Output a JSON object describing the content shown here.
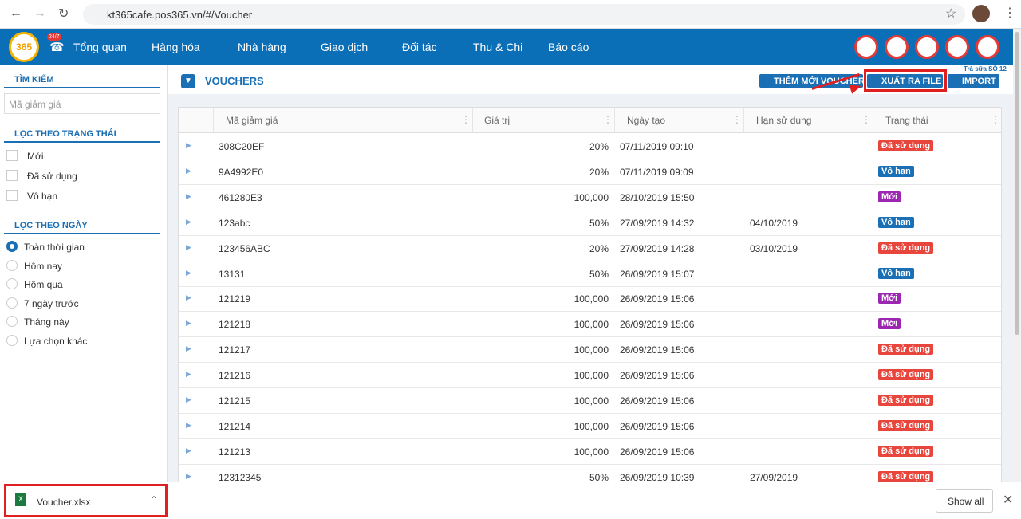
{
  "browser": {
    "url": "kt365cafe.pos365.vn/#/Voucher"
  },
  "nav": {
    "logo": "365",
    "badge": "24/7",
    "items": [
      "Tổng quan",
      "Hàng hóa",
      "Nhà hàng",
      "Giao dịch",
      "Đối tác",
      "Thu & Chi",
      "Báo cáo"
    ],
    "store": "Trà sữa SỐ 12"
  },
  "sidebar": {
    "search_title": "TÌM KIẾM",
    "search_placeholder": "Mã giảm giá",
    "status_title": "LỌC THEO TRẠNG THÁI",
    "status_options": [
      "Mới",
      "Đã sử dụng",
      "Vô hạn"
    ],
    "date_title": "LỌC THEO NGÀY",
    "date_options": [
      "Toàn thời gian",
      "Hôm nay",
      "Hôm qua",
      "7 ngày trước",
      "Tháng này",
      "Lựa chọn khác"
    ]
  },
  "page": {
    "title": "VOUCHERS",
    "buttons": [
      "THÊM MỚI VOUCHER",
      "XUẤT RA FILE",
      "IMPORT"
    ]
  },
  "table": {
    "columns": [
      "Mã giảm giá",
      "Giá trị",
      "Ngày tạo",
      "Hạn sử dụng",
      "Trạng thái"
    ],
    "rows": [
      {
        "code": "308C20EF",
        "value": "20%",
        "created": "07/11/2019 09:10",
        "expires": null,
        "status": "Đã sử dụng",
        "status_color": "#e8453c"
      },
      {
        "code": "9A4992E0",
        "value": "20%",
        "created": "07/11/2019 09:09",
        "expires": null,
        "status": "Vô hạn",
        "status_color": "#1a6fb5"
      },
      {
        "code": "461280E3",
        "value": "100,000",
        "created": "28/10/2019 15:50",
        "expires": null,
        "status": "Mới",
        "status_color": "#9c27b0"
      },
      {
        "code": "123abc",
        "value": "50%",
        "created": "27/09/2019 14:32",
        "expires": "04/10/2019",
        "status": "Vô hạn",
        "status_color": "#1a6fb5"
      },
      {
        "code": "123456ABC",
        "value": "20%",
        "created": "27/09/2019 14:28",
        "expires": "03/10/2019",
        "status": "Đã sử dụng",
        "status_color": "#e8453c"
      },
      {
        "code": "13131",
        "value": "50%",
        "created": "26/09/2019 15:07",
        "expires": null,
        "status": "Vô hạn",
        "status_color": "#1a6fb5"
      },
      {
        "code": "121219",
        "value": "100,000",
        "created": "26/09/2019 15:06",
        "expires": null,
        "status": "Mới",
        "status_color": "#9c27b0"
      },
      {
        "code": "121218",
        "value": "100,000",
        "created": "26/09/2019 15:06",
        "expires": null,
        "status": "Mới",
        "status_color": "#9c27b0"
      },
      {
        "code": "121217",
        "value": "100,000",
        "created": "26/09/2019 15:06",
        "expires": null,
        "status": "Đã sử dụng",
        "status_color": "#e8453c"
      },
      {
        "code": "121216",
        "value": "100,000",
        "created": "26/09/2019 15:06",
        "expires": null,
        "status": "Đã sử dụng",
        "status_color": "#e8453c"
      },
      {
        "code": "121215",
        "value": "100,000",
        "created": "26/09/2019 15:06",
        "expires": null,
        "status": "Đã sử dụng",
        "status_color": "#e8453c"
      },
      {
        "code": "121214",
        "value": "100,000",
        "created": "26/09/2019 15:06",
        "expires": null,
        "status": "Đã sử dụng",
        "status_color": "#e8453c"
      },
      {
        "code": "121213",
        "value": "100,000",
        "created": "26/09/2019 15:06",
        "expires": null,
        "status": "Đã sử dụng",
        "status_color": "#e8453c"
      },
      {
        "code": "12312345",
        "value": "50%",
        "created": "26/09/2019 10:39",
        "expires": "27/09/2019",
        "status": "Đã sử dụng",
        "status_color": "#e8453c"
      }
    ]
  },
  "downloads": {
    "file": "Voucher.xlsx",
    "show_all": "Show all"
  }
}
